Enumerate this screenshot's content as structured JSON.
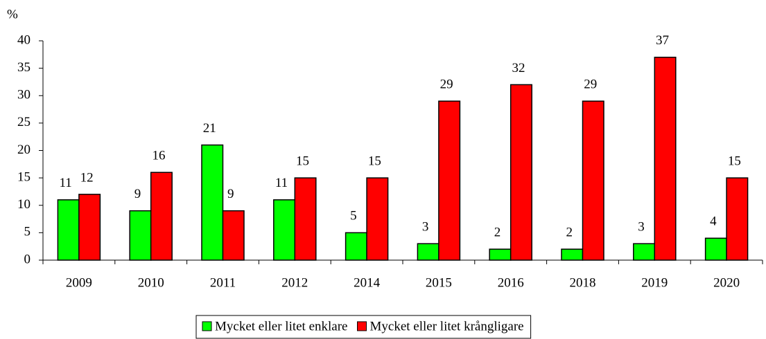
{
  "chart_data": {
    "type": "bar",
    "y_label": "%",
    "categories": [
      "2009",
      "2010",
      "2011",
      "2012",
      "2014",
      "2015",
      "2016",
      "2018",
      "2019",
      "2020"
    ],
    "series": [
      {
        "name": "Mycket eller litet enklare",
        "color": "#00ff00",
        "values": [
          11,
          9,
          21,
          11,
          5,
          3,
          2,
          2,
          3,
          4
        ]
      },
      {
        "name": "Mycket eller litet krångligare",
        "color": "#ff0000",
        "values": [
          12,
          16,
          9,
          15,
          15,
          29,
          32,
          29,
          37,
          15
        ]
      }
    ],
    "ylim": [
      0,
      40
    ],
    "yticks": [
      0,
      5,
      10,
      15,
      20,
      25,
      30,
      35,
      40
    ],
    "legend": "bottom"
  }
}
